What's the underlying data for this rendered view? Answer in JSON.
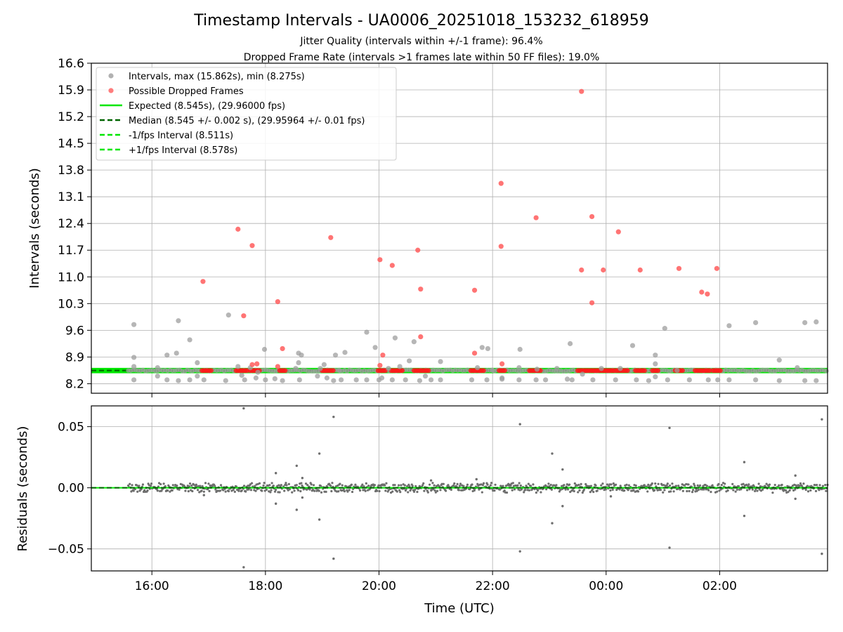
{
  "chart_data": [
    {
      "type": "scatter",
      "title": "Timestamp Intervals - UA0006_20251018_153232_618959",
      "subtitle_lines": [
        "Jitter Quality (intervals within +/-1 frame): 96.4%",
        "Dropped Frame Rate (intervals >1 frames late within 50 FF files): 19.0%"
      ],
      "xlabel": "",
      "ylabel": "Intervals (seconds)",
      "x_axis": {
        "type": "time",
        "start": "2025-10-18 14:56",
        "end": "2025-10-19 03:54"
      },
      "ylim": [
        7.95,
        16.6
      ],
      "yticks": [
        "8.2",
        "8.9",
        "9.6",
        "10.3",
        "11.0",
        "11.7",
        "12.4",
        "13.1",
        "13.8",
        "14.5",
        "15.2",
        "15.9",
        "16.6"
      ],
      "grid": true,
      "legend_position": "upper-left",
      "legend": [
        {
          "label": "Intervals, max (15.862s), min (8.275s)",
          "marker": "dot",
          "color": "#9e9e9e"
        },
        {
          "label": "Possible Dropped Frames",
          "marker": "dot",
          "color": "#ff5c5c"
        },
        {
          "label": "Expected (8.545s), (29.96000 fps)",
          "marker": "line",
          "color": "#00e600"
        },
        {
          "label": "Median (8.545 +/- 0.002 s), (29.95964 +/- 0.01 fps)",
          "marker": "dashed",
          "color": "#006400"
        },
        {
          "label": "-1/fps Interval (8.511s)",
          "marker": "dashed",
          "color": "#00e600"
        },
        {
          "label": "+1/fps Interval (8.578s)",
          "marker": "dashed",
          "color": "#00e600"
        }
      ],
      "expected_interval": 8.545,
      "median_interval": 8.545,
      "lower_interval": 8.511,
      "upper_interval": 8.578,
      "series": [
        {
          "name": "Intervals, max (15.862s), min (8.275s)",
          "color": "#9e9e9e",
          "points": [
            [
              "2025-10-18 15:41",
              9.75
            ],
            [
              "2025-10-18 15:41",
              8.89
            ],
            [
              "2025-10-18 15:41",
              8.65
            ],
            [
              "2025-10-18 15:41",
              8.3
            ],
            [
              "2025-10-18 16:06",
              8.62
            ],
            [
              "2025-10-18 16:06",
              8.4
            ],
            [
              "2025-10-18 16:16",
              8.95
            ],
            [
              "2025-10-18 16:16",
              8.3
            ],
            [
              "2025-10-18 16:26",
              9.0
            ],
            [
              "2025-10-18 16:28",
              8.28
            ],
            [
              "2025-10-18 16:28",
              9.85
            ],
            [
              "2025-10-18 16:40",
              9.35
            ],
            [
              "2025-10-18 16:40",
              8.3
            ],
            [
              "2025-10-18 16:48",
              8.75
            ],
            [
              "2025-10-18 16:48",
              8.4
            ],
            [
              "2025-10-18 16:55",
              8.3
            ],
            [
              "2025-10-18 17:18",
              8.28
            ],
            [
              "2025-10-18 17:21",
              10.0
            ],
            [
              "2025-10-18 17:31",
              8.65
            ],
            [
              "2025-10-18 17:35",
              8.42
            ],
            [
              "2025-10-18 17:38",
              8.3
            ],
            [
              "2025-10-18 17:44",
              8.62
            ],
            [
              "2025-10-18 17:50",
              8.35
            ],
            [
              "2025-10-18 17:52",
              8.5
            ],
            [
              "2025-10-18 17:59",
              9.1
            ],
            [
              "2025-10-18 18:00",
              8.3
            ],
            [
              "2025-10-18 18:10",
              8.33
            ],
            [
              "2025-10-18 18:18",
              8.28
            ],
            [
              "2025-10-18 18:32",
              8.6
            ],
            [
              "2025-10-18 18:35",
              8.75
            ],
            [
              "2025-10-18 18:35",
              9.0
            ],
            [
              "2025-10-18 18:36",
              8.3
            ],
            [
              "2025-10-18 18:38",
              8.95
            ],
            [
              "2025-10-18 18:55",
              8.4
            ],
            [
              "2025-10-18 18:58",
              8.6
            ],
            [
              "2025-10-18 19:02",
              8.7
            ],
            [
              "2025-10-18 19:05",
              8.35
            ],
            [
              "2025-10-18 19:12",
              8.28
            ],
            [
              "2025-10-18 19:14",
              8.95
            ],
            [
              "2025-10-18 19:18",
              8.55
            ],
            [
              "2025-10-18 19:20",
              8.3
            ],
            [
              "2025-10-18 19:24",
              9.02
            ],
            [
              "2025-10-18 19:36",
              8.3
            ],
            [
              "2025-10-18 19:47",
              9.55
            ],
            [
              "2025-10-18 19:47",
              8.3
            ],
            [
              "2025-10-18 19:56",
              9.15
            ],
            [
              "2025-10-18 20:00",
              8.3
            ],
            [
              "2025-10-18 20:03",
              8.35
            ],
            [
              "2025-10-18 20:10",
              8.6
            ],
            [
              "2025-10-18 20:14",
              8.3
            ],
            [
              "2025-10-18 20:17",
              9.4
            ],
            [
              "2025-10-18 20:22",
              8.65
            ],
            [
              "2025-10-18 20:28",
              8.3
            ],
            [
              "2025-10-18 20:32",
              8.8
            ],
            [
              "2025-10-18 20:37",
              9.3
            ],
            [
              "2025-10-18 20:43",
              8.28
            ],
            [
              "2025-10-18 20:49",
              8.4
            ],
            [
              "2025-10-18 20:55",
              8.3
            ],
            [
              "2025-10-18 21:05",
              8.78
            ],
            [
              "2025-10-18 21:05",
              8.3
            ],
            [
              "2025-10-18 21:38",
              8.3
            ],
            [
              "2025-10-18 21:44",
              8.62
            ],
            [
              "2025-10-18 21:49",
              9.15
            ],
            [
              "2025-10-18 21:54",
              8.3
            ],
            [
              "2025-10-18 21:55",
              9.12
            ],
            [
              "2025-10-18 22:00",
              8.55
            ],
            [
              "2025-10-18 22:10",
              8.32
            ],
            [
              "2025-10-18 22:10",
              8.35
            ],
            [
              "2025-10-18 22:28",
              8.62
            ],
            [
              "2025-10-18 22:28",
              8.3
            ],
            [
              "2025-10-18 22:29",
              9.1
            ],
            [
              "2025-10-18 22:46",
              8.3
            ],
            [
              "2025-10-18 22:47",
              8.58
            ],
            [
              "2025-10-18 22:56",
              8.3
            ],
            [
              "2025-10-18 23:08",
              8.6
            ],
            [
              "2025-10-18 23:19",
              8.32
            ],
            [
              "2025-10-18 23:22",
              9.25
            ],
            [
              "2025-10-18 23:24",
              8.3
            ],
            [
              "2025-10-18 23:35",
              8.45
            ],
            [
              "2025-10-18 23:46",
              8.3
            ],
            [
              "2025-10-18 23:55",
              8.6
            ],
            [
              "2025-10-19 00:10",
              8.3
            ],
            [
              "2025-10-19 00:15",
              8.6
            ],
            [
              "2025-10-19 00:28",
              9.2
            ],
            [
              "2025-10-19 00:32",
              8.3
            ],
            [
              "2025-10-19 00:45",
              8.28
            ],
            [
              "2025-10-19 00:52",
              8.95
            ],
            [
              "2025-10-19 00:52",
              8.72
            ],
            [
              "2025-10-19 00:52",
              8.38
            ],
            [
              "2025-10-19 01:02",
              9.65
            ],
            [
              "2025-10-19 01:05",
              8.3
            ],
            [
              "2025-10-19 01:15",
              8.55
            ],
            [
              "2025-10-19 01:28",
              8.3
            ],
            [
              "2025-10-19 01:48",
              8.3
            ],
            [
              "2025-10-19 01:58",
              8.3
            ],
            [
              "2025-10-19 02:10",
              9.72
            ],
            [
              "2025-10-19 02:10",
              8.3
            ],
            [
              "2025-10-19 02:38",
              9.8
            ],
            [
              "2025-10-19 02:38",
              8.3
            ],
            [
              "2025-10-19 03:03",
              8.82
            ],
            [
              "2025-10-19 03:03",
              8.28
            ],
            [
              "2025-10-19 03:22",
              8.62
            ],
            [
              "2025-10-19 03:30",
              9.8
            ],
            [
              "2025-10-19 03:30",
              8.28
            ],
            [
              "2025-10-19 03:42",
              9.82
            ],
            [
              "2025-10-19 03:42",
              8.28
            ]
          ]
        },
        {
          "name": "Possible Dropped Frames",
          "color": "#ff5c5c",
          "points": [
            [
              "2025-10-18 16:54",
              10.88
            ],
            [
              "2025-10-18 17:31",
              12.25
            ],
            [
              "2025-10-18 17:37",
              9.98
            ],
            [
              "2025-10-18 17:46",
              11.82
            ],
            [
              "2025-10-18 17:46",
              8.7
            ],
            [
              "2025-10-18 17:51",
              8.72
            ],
            [
              "2025-10-18 18:13",
              10.35
            ],
            [
              "2025-10-18 18:13",
              8.65
            ],
            [
              "2025-10-18 18:18",
              9.12
            ],
            [
              "2025-10-18 19:09",
              12.03
            ],
            [
              "2025-10-18 20:01",
              11.45
            ],
            [
              "2025-10-18 20:01",
              8.68
            ],
            [
              "2025-10-18 20:04",
              8.95
            ],
            [
              "2025-10-18 20:14",
              11.3
            ],
            [
              "2025-10-18 20:41",
              11.7
            ],
            [
              "2025-10-18 20:44",
              10.68
            ],
            [
              "2025-10-18 20:44",
              9.43
            ],
            [
              "2025-10-18 21:41",
              10.65
            ],
            [
              "2025-10-18 21:41",
              9.0
            ],
            [
              "2025-10-18 22:09",
              13.45
            ],
            [
              "2025-10-18 22:09",
              11.8
            ],
            [
              "2025-10-18 22:10",
              8.72
            ],
            [
              "2025-10-18 22:46",
              12.55
            ],
            [
              "2025-10-18 23:34",
              15.86
            ],
            [
              "2025-10-18 23:34",
              11.18
            ],
            [
              "2025-10-18 23:45",
              12.58
            ],
            [
              "2025-10-18 23:45",
              10.32
            ],
            [
              "2025-10-18 23:57",
              11.18
            ],
            [
              "2025-10-19 00:13",
              12.18
            ],
            [
              "2025-10-19 00:36",
              11.18
            ],
            [
              "2025-10-19 01:17",
              11.22
            ],
            [
              "2025-10-19 01:41",
              10.6
            ],
            [
              "2025-10-19 01:47",
              10.55
            ],
            [
              "2025-10-19 01:57",
              11.22
            ]
          ]
        }
      ],
      "dropped_frame_clusters": [
        {
          "from": "2025-10-18 16:53",
          "to": "2025-10-18 17:03"
        },
        {
          "from": "2025-10-18 17:29",
          "to": "2025-10-18 17:41"
        },
        {
          "from": "2025-10-18 17:44",
          "to": "2025-10-18 17:55"
        },
        {
          "from": "2025-10-18 18:15",
          "to": "2025-10-18 18:22"
        },
        {
          "from": "2025-10-18 19:00",
          "to": "2025-10-18 19:12"
        },
        {
          "from": "2025-10-18 19:59",
          "to": "2025-10-18 20:08"
        },
        {
          "from": "2025-10-18 20:13",
          "to": "2025-10-18 20:26"
        },
        {
          "from": "2025-10-18 20:37",
          "to": "2025-10-18 20:54"
        },
        {
          "from": "2025-10-18 21:37",
          "to": "2025-10-18 21:51"
        },
        {
          "from": "2025-10-18 22:07",
          "to": "2025-10-18 22:14"
        },
        {
          "from": "2025-10-18 22:39",
          "to": "2025-10-18 22:52"
        },
        {
          "from": "2025-10-18 23:30",
          "to": "2025-10-18 23:42"
        },
        {
          "from": "2025-10-18 23:44",
          "to": "2025-10-18 23:58"
        },
        {
          "from": "2025-10-18 23:59",
          "to": "2025-10-19 00:09"
        },
        {
          "from": "2025-10-19 00:11",
          "to": "2025-10-19 00:23"
        },
        {
          "from": "2025-10-19 00:31",
          "to": "2025-10-19 00:41"
        },
        {
          "from": "2025-10-19 00:49",
          "to": "2025-10-19 00:56"
        },
        {
          "from": "2025-10-19 01:13",
          "to": "2025-10-19 01:22"
        },
        {
          "from": "2025-10-19 01:34",
          "to": "2025-10-19 01:51"
        },
        {
          "from": "2025-10-19 01:53",
          "to": "2025-10-19 02:02"
        }
      ]
    },
    {
      "type": "scatter",
      "xlabel": "Time (UTC)",
      "ylabel": "Residuals (seconds)",
      "x_axis": {
        "type": "time",
        "start": "2025-10-18 14:56",
        "end": "2025-10-19 03:54"
      },
      "xticks": [
        "16:00",
        "18:00",
        "20:00",
        "22:00",
        "00:00",
        "02:00"
      ],
      "ylim": [
        -0.068,
        0.067
      ],
      "yticks": [
        "0.05",
        "0.00",
        "−0.05"
      ],
      "yticks_values": [
        0.05,
        0,
        -0.05
      ],
      "grid": true,
      "zero_line": 0,
      "dense_band": {
        "from": "2025-10-18 15:35",
        "to": "2025-10-19 03:54",
        "amplitude": 0.004
      },
      "outliers": [
        [
          "2025-10-18 17:37",
          0.065
        ],
        [
          "2025-10-18 17:37",
          -0.065
        ],
        [
          "2025-10-18 19:12",
          0.058
        ],
        [
          "2025-10-18 19:12",
          -0.058
        ],
        [
          "2025-10-18 22:29",
          0.052
        ],
        [
          "2025-10-18 22:29",
          -0.052
        ],
        [
          "2025-10-19 01:07",
          0.049
        ],
        [
          "2025-10-19 01:07",
          -0.049
        ],
        [
          "2025-10-19 03:48",
          0.056
        ],
        [
          "2025-10-19 03:48",
          -0.054
        ],
        [
          "2025-10-18 18:11",
          0.012
        ],
        [
          "2025-10-18 18:11",
          -0.013
        ],
        [
          "2025-10-18 18:33",
          0.018
        ],
        [
          "2025-10-18 18:33",
          -0.018
        ],
        [
          "2025-10-18 18:39",
          0.008
        ],
        [
          "2025-10-18 18:39",
          -0.008
        ],
        [
          "2025-10-18 18:57",
          0.028
        ],
        [
          "2025-10-18 18:57",
          -0.026
        ],
        [
          "2025-10-18 23:03",
          0.028
        ],
        [
          "2025-10-18 23:03",
          -0.029
        ],
        [
          "2025-10-18 23:14",
          0.015
        ],
        [
          "2025-10-18 23:14",
          -0.015
        ],
        [
          "2025-10-19 02:26",
          0.021
        ],
        [
          "2025-10-19 02:26",
          -0.023
        ],
        [
          "2025-10-19 03:20",
          0.01
        ],
        [
          "2025-10-19 03:20",
          -0.009
        ],
        [
          "2025-10-18 16:55",
          -0.006
        ],
        [
          "2025-10-18 21:43",
          0.007
        ],
        [
          "2025-10-19 00:05",
          -0.007
        ],
        [
          "2025-10-18 20:55",
          0.006
        ]
      ]
    }
  ]
}
